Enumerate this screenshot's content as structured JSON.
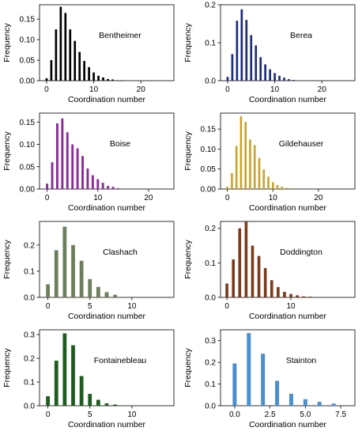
{
  "chart_data": [
    {
      "type": "bar",
      "title": "Bentheimer",
      "xlabel": "Coordination number",
      "ylabel": "Frequency",
      "xlim": [
        -1.5,
        27
      ],
      "ylim": [
        0,
        0.185
      ],
      "xticks": [
        0,
        10,
        20
      ],
      "yticks": [
        0,
        0.05,
        0.1,
        0.15
      ],
      "ytick_labels": [
        "0.00",
        "0.05",
        "0.10",
        "0.15"
      ],
      "bar_color": "#000000",
      "x": [
        0,
        1,
        2,
        3,
        4,
        5,
        6,
        7,
        8,
        9,
        10,
        11,
        12,
        13,
        14,
        15,
        16
      ],
      "values": [
        0.006,
        0.05,
        0.125,
        0.18,
        0.165,
        0.125,
        0.097,
        0.07,
        0.048,
        0.033,
        0.02,
        0.012,
        0.008,
        0.004,
        0.003,
        0.001,
        0.001
      ]
    },
    {
      "type": "bar",
      "title": "Berea",
      "xlabel": "Coordination number",
      "ylabel": "Frequency",
      "xlim": [
        -1.5,
        27
      ],
      "ylim": [
        0,
        0.2
      ],
      "xticks": [
        0,
        10,
        20
      ],
      "yticks": [
        0,
        0.1,
        0.2
      ],
      "ytick_labels": [
        "0.0",
        "0.1",
        "0.2"
      ],
      "bar_color": "#1a2b7a",
      "x": [
        0,
        1,
        2,
        3,
        4,
        5,
        6,
        7,
        8,
        9,
        10,
        11,
        12,
        13,
        14
      ],
      "values": [
        0.01,
        0.07,
        0.158,
        0.188,
        0.16,
        0.12,
        0.093,
        0.062,
        0.043,
        0.03,
        0.02,
        0.013,
        0.008,
        0.004,
        0.002
      ]
    },
    {
      "type": "bar",
      "title": "Boise",
      "xlabel": "Coordination number",
      "ylabel": "Frequency",
      "xlim": [
        -1.5,
        25
      ],
      "ylim": [
        0,
        0.17
      ],
      "xticks": [
        0,
        10,
        20
      ],
      "yticks": [
        0,
        0.05,
        0.1,
        0.15
      ],
      "ytick_labels": [
        "0.00",
        "0.05",
        "0.10",
        "0.15"
      ],
      "bar_color": "#8a2b9a",
      "x": [
        0,
        1,
        2,
        3,
        4,
        5,
        6,
        7,
        8,
        9,
        10,
        11,
        12,
        13,
        14,
        15,
        16,
        17
      ],
      "values": [
        0.012,
        0.06,
        0.147,
        0.158,
        0.127,
        0.1,
        0.091,
        0.074,
        0.046,
        0.031,
        0.022,
        0.014,
        0.007,
        0.005,
        0.002,
        0.001,
        0.001,
        0.001
      ]
    },
    {
      "type": "bar",
      "title": "Gildehauser",
      "xlabel": "Coordination number",
      "ylabel": "Frequency",
      "xlim": [
        -1.5,
        28
      ],
      "ylim": [
        0,
        0.19
      ],
      "xticks": [
        0,
        10,
        20
      ],
      "yticks": [
        0,
        0.05,
        0.1,
        0.15
      ],
      "ytick_labels": [
        "0.00",
        "0.05",
        "0.10",
        "0.15"
      ],
      "bar_color": "#c9a227",
      "x": [
        0,
        1,
        2,
        3,
        4,
        5,
        6,
        7,
        8,
        9,
        10,
        11,
        12,
        13,
        14
      ],
      "values": [
        0.006,
        0.04,
        0.108,
        0.182,
        0.168,
        0.124,
        0.11,
        0.078,
        0.049,
        0.031,
        0.017,
        0.01,
        0.006,
        0.003,
        0.002
      ]
    },
    {
      "type": "bar",
      "title": "Clashach",
      "xlabel": "Coordination number",
      "ylabel": "Frequency",
      "xlim": [
        -1,
        15
      ],
      "ylim": [
        0,
        0.29
      ],
      "xticks": [
        0,
        5,
        10
      ],
      "yticks": [
        0,
        0.1,
        0.2
      ],
      "ytick_labels": [
        "0.0",
        "0.1",
        "0.2"
      ],
      "bar_color": "#6b7f5c",
      "x": [
        0,
        1,
        2,
        3,
        4,
        5,
        6,
        7,
        8
      ],
      "values": [
        0.05,
        0.18,
        0.27,
        0.2,
        0.14,
        0.07,
        0.04,
        0.02,
        0.01
      ]
    },
    {
      "type": "bar",
      "title": "Doddington",
      "xlabel": "Coordination number",
      "ylabel": "Frequency",
      "xlim": [
        -1,
        20
      ],
      "ylim": [
        0,
        0.22
      ],
      "xticks": [
        0,
        10
      ],
      "yticks": [
        0,
        0.1,
        0.2
      ],
      "ytick_labels": [
        "0.0",
        "0.1",
        "0.2"
      ],
      "bar_color": "#7a3b1c",
      "x": [
        0,
        1,
        2,
        3,
        4,
        5,
        6,
        7,
        8,
        9,
        10,
        11,
        12,
        13,
        14
      ],
      "values": [
        0.04,
        0.11,
        0.2,
        0.22,
        0.15,
        0.12,
        0.085,
        0.05,
        0.03,
        0.016,
        0.01,
        0.006,
        0.003,
        0.002,
        0.001
      ]
    },
    {
      "type": "bar",
      "title": "Fontainebleau",
      "xlabel": "Coordination number",
      "ylabel": "Frequency",
      "xlim": [
        -1,
        15
      ],
      "ylim": [
        0,
        0.32
      ],
      "xticks": [
        0,
        5,
        10
      ],
      "yticks": [
        0,
        0.1,
        0.2,
        0.3
      ],
      "ytick_labels": [
        "0.0",
        "0.1",
        "0.2",
        "0.3"
      ],
      "bar_color": "#1f5a1f",
      "x": [
        0,
        1,
        2,
        3,
        4,
        5,
        6,
        7,
        8
      ],
      "values": [
        0.04,
        0.19,
        0.305,
        0.255,
        0.125,
        0.05,
        0.025,
        0.01,
        0.005
      ]
    },
    {
      "type": "bar",
      "title": "Stainton",
      "xlabel": "Coordination number",
      "ylabel": "Frequency",
      "xlim": [
        -1,
        8.5
      ],
      "ylim": [
        0,
        0.35
      ],
      "xticks": [
        0,
        2.5,
        5,
        7.5
      ],
      "xtick_labels": [
        "0.0",
        "2.5",
        "5.0",
        "7.5"
      ],
      "yticks": [
        0,
        0.1,
        0.2,
        0.3
      ],
      "ytick_labels": [
        "0.0",
        "0.1",
        "0.2",
        "0.3"
      ],
      "bar_color": "#4a8fd0",
      "x": [
        0,
        1,
        2,
        3,
        4,
        5,
        6,
        7
      ],
      "values": [
        0.195,
        0.335,
        0.24,
        0.115,
        0.055,
        0.03,
        0.018,
        0.01
      ]
    }
  ]
}
